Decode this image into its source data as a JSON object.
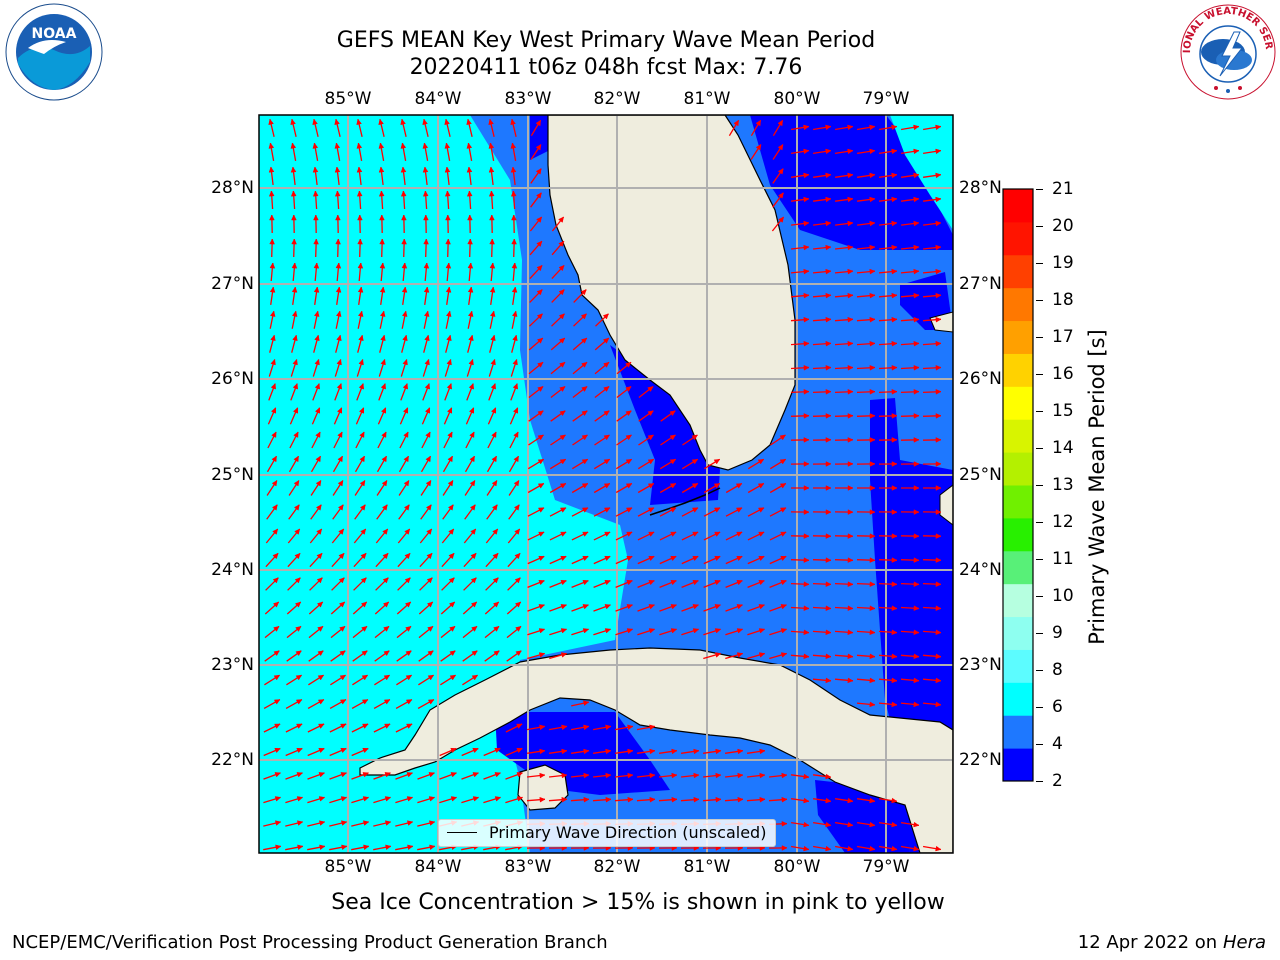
{
  "title_line1": "GEFS MEAN Key West Primary Wave Mean Period",
  "title_line2": "20220411 t06z 048h fcst   Max: 7.76",
  "lon_labels": [
    "85°W",
    "84°W",
    "83°W",
    "82°W",
    "81°W",
    "80°W",
    "79°W"
  ],
  "lat_labels": [
    "28°N",
    "27°N",
    "26°N",
    "25°N",
    "24°N",
    "23°N",
    "22°N"
  ],
  "legend_label": "Primary Wave Direction (unscaled)",
  "colorbar": {
    "label": "Primary Wave Mean Period [s]",
    "ticks": [
      "21",
      "20",
      "19",
      "18",
      "17",
      "16",
      "15",
      "14",
      "13",
      "12",
      "11",
      "10",
      "9",
      "8",
      "6",
      "4",
      "2"
    ],
    "colors": [
      "#0000ff",
      "#1e78ff",
      "#00ffff",
      "#5cfcff",
      "#8efff0",
      "#b6ffe0",
      "#58f078",
      "#28f000",
      "#70f000",
      "#b4f000",
      "#d8f400",
      "#ffff00",
      "#ffd200",
      "#ffa000",
      "#ff7800",
      "#ff4000",
      "#ff1400",
      "#ff0000"
    ]
  },
  "note": "Sea Ice Concentration > 15% is shown in pink to yellow",
  "footer_left": "NCEP/EMC/Verification Post Processing Product Generation Branch",
  "footer_date": "12 Apr 2022 on ",
  "footer_host": "Hera",
  "noaa_logo_text": "NOAA",
  "nws_logo_text": "NATIONAL WEATHER SERVICE"
}
